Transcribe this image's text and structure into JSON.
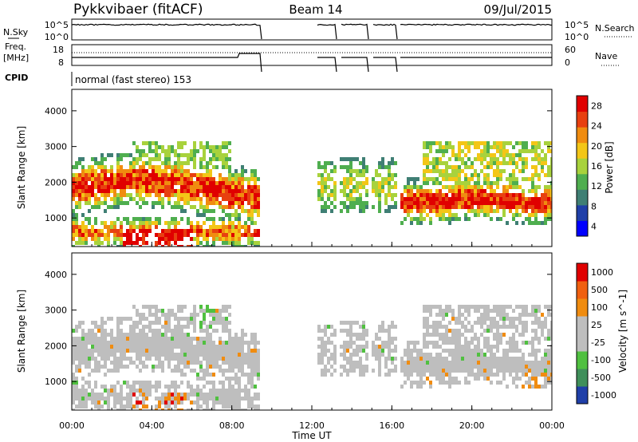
{
  "header": {
    "station": "Pykkvibaer (fitACF)",
    "beam": "Beam 14",
    "date": "09/Jul/2015"
  },
  "top_panels": {
    "nsky_label": "N.Sky",
    "nsky_ticks": [
      "10^5",
      "10^0"
    ],
    "nsearch_label": "N.Search",
    "nsearch_ticks": [
      "10^5",
      "10^0"
    ],
    "freq_label": "Freq.",
    "freq_unit": "[MHz]",
    "freq_ticks": [
      "18",
      "8"
    ],
    "nave_label": "Nave",
    "nave_ticks": [
      "60",
      "0"
    ],
    "cpid_label": "CPID",
    "cpid_value": "normal (fast stereo) 153"
  },
  "chart_data": [
    {
      "type": "heatmap",
      "name": "power-panel",
      "quantity": "Power",
      "colorbar_label": "Power [dB]",
      "colorbar_ticks": [
        "28",
        "24",
        "20",
        "16",
        "12",
        "8",
        "4"
      ],
      "colorbar_colors": [
        "#0000ff",
        "#1f3fa8",
        "#3f7f74",
        "#4fae4f",
        "#a8d23c",
        "#f3c617",
        "#f08c10",
        "#e84010",
        "#e00000"
      ],
      "ylabel": "Slant Range [km]",
      "yticks": [
        "4000",
        "3000",
        "2000",
        "1000"
      ],
      "ylim": [
        200,
        4600
      ],
      "xlabel": "",
      "xlim": [
        "00:00",
        "24:00"
      ],
      "note": "range-time intensity; data gaps ~09:30-12:00 and partial coverage 12:00-17:00"
    },
    {
      "type": "heatmap",
      "name": "velocity-panel",
      "quantity": "Velocity",
      "colorbar_label": "Velocity [m s^-1]",
      "colorbar_ticks": [
        "1000",
        "500",
        "100",
        "25",
        "-25",
        "-100",
        "-500",
        "-1000"
      ],
      "colorbar_colors": [
        "#1f3fa8",
        "#3f8f5a",
        "#50c040",
        "#bebebe",
        "#bebebe",
        "#f08c10",
        "#f06010",
        "#e00000"
      ],
      "ylabel": "Slant Range [km]",
      "yticks": [
        "4000",
        "3000",
        "2000",
        "1000"
      ],
      "ylim": [
        200,
        4600
      ],
      "xlabel": "Time UT",
      "xticks": [
        "00:00",
        "04:00",
        "08:00",
        "12:00",
        "16:00",
        "20:00",
        "00:00"
      ],
      "xlim": [
        "00:00",
        "24:00"
      ]
    }
  ]
}
